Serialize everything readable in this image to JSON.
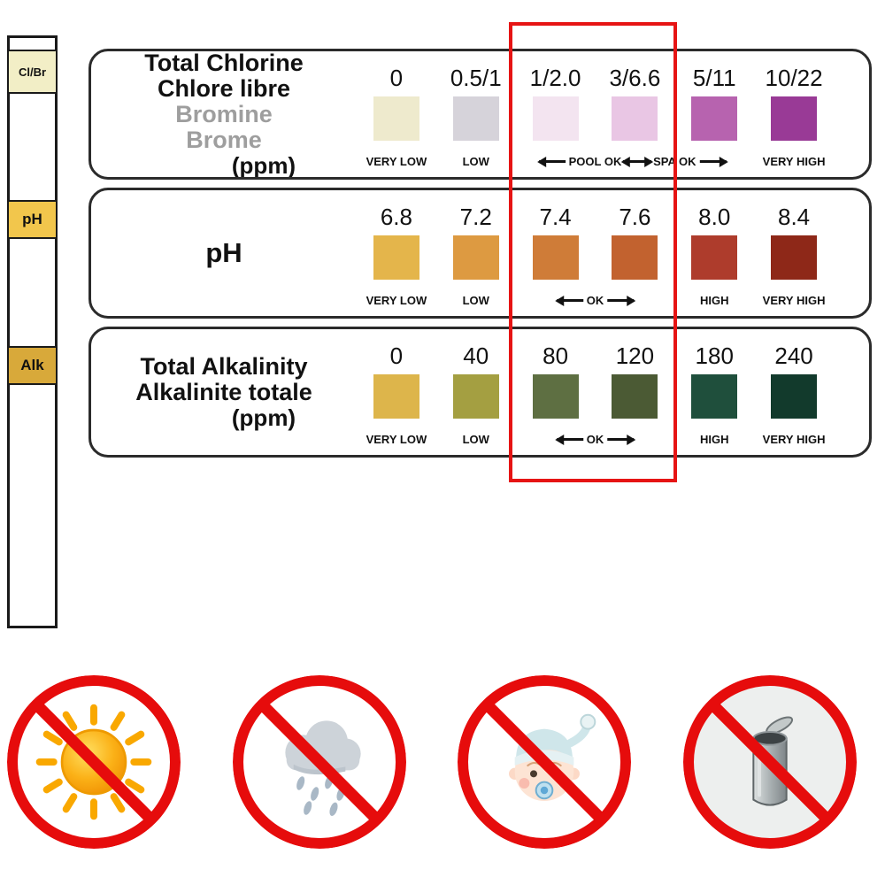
{
  "product": "pool-spa-test-strip-color-chart",
  "strip": {
    "pads": [
      {
        "label": "Cl/Br",
        "color": "#f2eec6"
      },
      {
        "label": "pH",
        "color": "#f2c64c"
      },
      {
        "label": "Alk",
        "color": "#d8a93a"
      }
    ]
  },
  "panels": [
    {
      "id": "total-chlorine",
      "title_lines": [
        {
          "text": "Total Chlorine",
          "style": "dark"
        },
        {
          "text": "Chlore libre",
          "style": "dark"
        },
        {
          "text": "Bromine",
          "style": "muted"
        },
        {
          "text": "Brome",
          "style": "muted"
        },
        {
          "text": "(ppm)",
          "style": "dark indent"
        }
      ],
      "columns": [
        {
          "value": "0",
          "color": "#eeeacd"
        },
        {
          "value": "0.5/1",
          "color": "#d6d3da"
        },
        {
          "value": "1/2.0",
          "color": "#f3e4f0"
        },
        {
          "value": "3/6.6",
          "color": "#e9c6e4"
        },
        {
          "value": "5/11",
          "color": "#b763af"
        },
        {
          "value": "10/22",
          "color": "#993a96"
        }
      ],
      "footer": [
        {
          "text": "VERY LOW",
          "start": 1,
          "end": 1,
          "arrows": false
        },
        {
          "text": "LOW",
          "start": 2,
          "end": 2,
          "arrows": false
        },
        {
          "text": "POOL OK",
          "start": 3,
          "end": 4,
          "arrows": true
        },
        {
          "text": "SPA OK",
          "start": 4,
          "end": 5,
          "arrows": true
        },
        {
          "text": "VERY HIGH",
          "start": 6,
          "end": 6,
          "arrows": false
        }
      ]
    },
    {
      "id": "ph",
      "big_title": true,
      "title_lines": [
        {
          "text": "pH",
          "style": "dark"
        }
      ],
      "columns": [
        {
          "value": "6.8",
          "color": "#e4b54b"
        },
        {
          "value": "7.2",
          "color": "#dd9a41"
        },
        {
          "value": "7.4",
          "color": "#cf7c38"
        },
        {
          "value": "7.6",
          "color": "#c2622f"
        },
        {
          "value": "8.0",
          "color": "#ae3c2c"
        },
        {
          "value": "8.4",
          "color": "#8e2818"
        }
      ],
      "footer": [
        {
          "text": "VERY LOW",
          "start": 1,
          "end": 1,
          "arrows": false
        },
        {
          "text": "LOW",
          "start": 2,
          "end": 2,
          "arrows": false
        },
        {
          "text": "OK",
          "start": 3,
          "end": 4,
          "arrows": true
        },
        {
          "text": "HIGH",
          "start": 5,
          "end": 5,
          "arrows": false
        },
        {
          "text": "VERY HIGH",
          "start": 6,
          "end": 6,
          "arrows": false
        }
      ]
    },
    {
      "id": "total-alkalinity",
      "title_lines": [
        {
          "text": "Total Alkalinity",
          "style": "dark"
        },
        {
          "text": "Alkalinite totale",
          "style": "dark"
        },
        {
          "text": "(ppm)",
          "style": "dark indent"
        }
      ],
      "columns": [
        {
          "value": "0",
          "color": "#ddb54b"
        },
        {
          "value": "40",
          "color": "#a49f41"
        },
        {
          "value": "80",
          "color": "#5e6f42"
        },
        {
          "value": "120",
          "color": "#4b5a34"
        },
        {
          "value": "180",
          "color": "#1f4f3c"
        },
        {
          "value": "240",
          "color": "#123a2c"
        }
      ],
      "footer": [
        {
          "text": "VERY LOW",
          "start": 1,
          "end": 1,
          "arrows": false
        },
        {
          "text": "LOW",
          "start": 2,
          "end": 2,
          "arrows": false
        },
        {
          "text": "OK",
          "start": 3,
          "end": 4,
          "arrows": true
        },
        {
          "text": "HIGH",
          "start": 5,
          "end": 5,
          "arrows": false
        },
        {
          "text": "VERY HIGH",
          "start": 6,
          "end": 6,
          "arrows": false
        }
      ]
    }
  ],
  "highlight": {
    "color": "#e61414"
  },
  "warnings": {
    "ring_color": "#e60c0c",
    "icons": [
      "sun-icon",
      "rain-cloud-icon",
      "baby-icon",
      "open-can-icon"
    ]
  }
}
